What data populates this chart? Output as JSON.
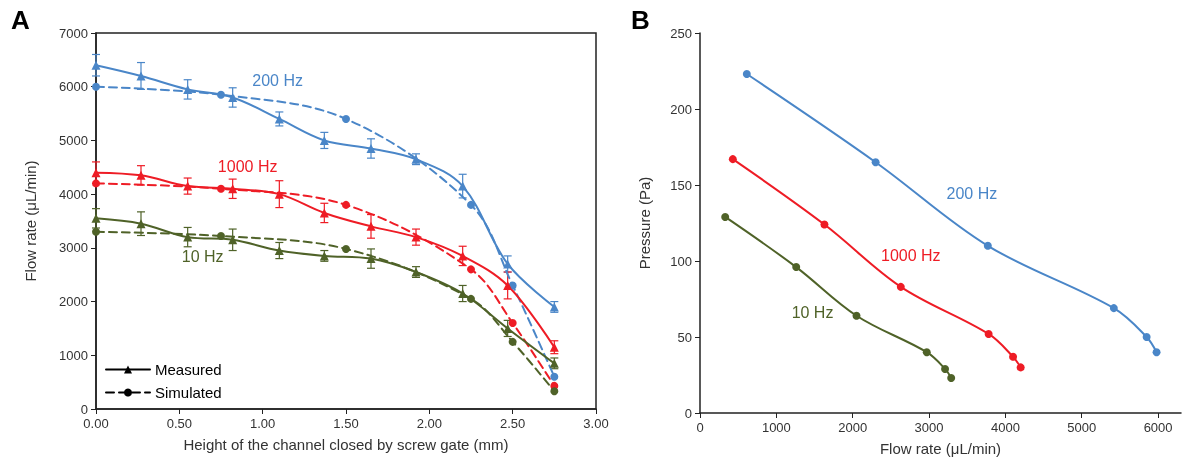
{
  "chart_data": [
    {
      "type": "line",
      "title": "A",
      "xlabel": "Height of the channel closed by screw gate (mm)",
      "ylabel": "Flow rate (μL/min)",
      "xlim": [
        0,
        3
      ],
      "xticks": [
        {
          "value": 0,
          "label": "0.00"
        },
        {
          "value": 0.5,
          "label": "0.50"
        },
        {
          "value": 1,
          "label": "1.00"
        },
        {
          "value": 1.5,
          "label": "1.50"
        },
        {
          "value": 2,
          "label": "2.00"
        },
        {
          "value": 2.5,
          "label": "2.50"
        },
        {
          "value": 3,
          "label": "3.00"
        }
      ],
      "ylim": [
        0,
        7000
      ],
      "yticks": [
        0,
        1000,
        2000,
        3000,
        4000,
        5000,
        6000,
        7000
      ],
      "grid": false,
      "legend": "bottom left",
      "series": [
        {
          "name": "200 Hz",
          "color": "#4a86c8",
          "marker": "triangle",
          "line_style": "solid",
          "x": [
            0,
            0.27,
            0.55,
            0.82,
            1.1,
            1.37,
            1.65,
            1.92,
            2.2,
            2.47,
            2.75
          ],
          "values": [
            6400,
            6200,
            5950,
            5800,
            5400,
            5000,
            4850,
            4650,
            4150,
            2700,
            1900
          ],
          "errors": [
            200,
            250,
            180,
            180,
            130,
            150,
            180,
            100,
            220,
            150,
            100
          ]
        },
        {
          "color": "#4a86c8",
          "marker": "circle",
          "line_style": "dashed",
          "x": [
            0,
            0.75,
            1.5,
            2.25,
            2.5,
            2.75
          ],
          "values": [
            6000,
            5850,
            5400,
            3800,
            2300,
            600
          ]
        },
        {
          "name": "1000 Hz",
          "color": "#ee1c25",
          "marker": "triangle",
          "line_style": "solid",
          "x": [
            0,
            0.27,
            0.55,
            0.82,
            1.1,
            1.37,
            1.65,
            1.92,
            2.2,
            2.47,
            2.75
          ],
          "values": [
            4400,
            4350,
            4150,
            4100,
            4000,
            3650,
            3400,
            3200,
            2850,
            2300,
            1150
          ],
          "errors": [
            200,
            180,
            150,
            180,
            250,
            180,
            220,
            150,
            180,
            250,
            120
          ]
        },
        {
          "color": "#ee1c25",
          "marker": "circle",
          "line_style": "dashed",
          "x": [
            0,
            0.75,
            1.5,
            2.25,
            2.5,
            2.75
          ],
          "values": [
            4200,
            4100,
            3800,
            2600,
            1600,
            430
          ]
        },
        {
          "name": "10 Hz",
          "color": "#4f6228",
          "marker": "triangle",
          "line_style": "solid",
          "x": [
            0,
            0.27,
            0.55,
            0.82,
            1.1,
            1.37,
            1.65,
            1.92,
            2.2,
            2.47,
            2.75
          ],
          "values": [
            3550,
            3450,
            3200,
            3150,
            2950,
            2850,
            2800,
            2550,
            2150,
            1500,
            850
          ],
          "errors": [
            180,
            220,
            180,
            200,
            150,
            100,
            180,
            100,
            150,
            150,
            100
          ]
        },
        {
          "color": "#4f6228",
          "marker": "circle",
          "line_style": "dashed",
          "x": [
            0,
            0.75,
            1.5,
            2.25,
            2.5,
            2.75
          ],
          "values": [
            3300,
            3220,
            2980,
            2050,
            1250,
            330
          ]
        },
        {
          "name": "Measured",
          "color": "#000000",
          "marker": "triangle",
          "line_style": "solid"
        },
        {
          "name": "Simulated",
          "color": "#000000",
          "marker": "circle",
          "line_style": "dashed"
        }
      ]
    },
    {
      "type": "line",
      "title": "B",
      "xlabel": "Flow rate (μL/min)",
      "ylabel": "Pressure (Pa)",
      "xlim": [
        0,
        6300
      ],
      "xticks": [
        0,
        1000,
        2000,
        3000,
        4000,
        5000,
        6000
      ],
      "ylim": [
        0,
        250
      ],
      "yticks": [
        0,
        50,
        100,
        150,
        200,
        250
      ],
      "grid": false,
      "series": [
        {
          "name": "200 Hz",
          "color": "#4a86c8",
          "marker": "circle",
          "line_style": "solid",
          "x": [
            613,
            2300,
            3770,
            5420,
            5850,
            5980
          ],
          "values": [
            223,
            165,
            110,
            69,
            50,
            40
          ]
        },
        {
          "name": "1000 Hz",
          "color": "#ee1c25",
          "marker": "circle",
          "line_style": "solid",
          "x": [
            430,
            1630,
            2630,
            3780,
            4100,
            4200
          ],
          "values": [
            167,
            124,
            83,
            52,
            37,
            30
          ]
        },
        {
          "name": "10 Hz",
          "color": "#4f6228",
          "marker": "circle",
          "line_style": "solid",
          "x": [
            330,
            1260,
            2050,
            2970,
            3210,
            3290
          ],
          "values": [
            129,
            96,
            64,
            40,
            29,
            23
          ]
        }
      ]
    }
  ]
}
